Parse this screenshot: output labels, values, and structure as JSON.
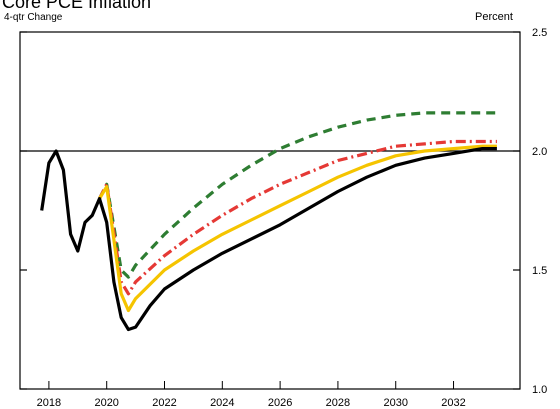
{
  "chart_data": {
    "type": "line",
    "title": "Core PCE Inflation",
    "subtitle": "4-qtr Change",
    "y_label": "Percent",
    "xlim": [
      2017,
      2034.3
    ],
    "xticks": [
      2018,
      2020,
      2022,
      2024,
      2026,
      2028,
      2030,
      2032
    ],
    "ylim": [
      1.0,
      2.5
    ],
    "yticks": [
      {
        "value": 1.0,
        "label": "1.0"
      },
      1.5,
      {
        "value": 2.0,
        "label": "2.0"
      },
      2.5
    ],
    "hline": 2,
    "series": [
      {
        "color": "#2e7d32",
        "dash": "9,6",
        "x": [
          2019.75,
          2020,
          2020.5,
          2020.75,
          2021,
          2022,
          2023,
          2024,
          2025,
          2026,
          2027,
          2028,
          2029,
          2030,
          2031,
          2032,
          2033,
          2033.5
        ],
        "values": [
          1.8,
          1.86,
          1.5,
          1.47,
          1.52,
          1.65,
          1.76,
          1.86,
          1.94,
          2.01,
          2.06,
          2.1,
          2.13,
          2.15,
          2.16,
          2.16,
          2.16,
          2.16
        ]
      },
      {
        "color": "#e53935",
        "dash": "10,4,2,4",
        "x": [
          2019.75,
          2020,
          2020.5,
          2020.75,
          2021,
          2022,
          2023,
          2024,
          2025,
          2026,
          2027,
          2028,
          2029,
          2030,
          2031,
          2032,
          2033,
          2033.5
        ],
        "values": [
          1.8,
          1.86,
          1.45,
          1.4,
          1.45,
          1.56,
          1.65,
          1.73,
          1.8,
          1.86,
          1.91,
          1.96,
          1.99,
          2.02,
          2.03,
          2.04,
          2.04,
          2.04
        ]
      },
      {
        "color": "#f5c400",
        "dash": "",
        "x": [
          2019.75,
          2020,
          2020.5,
          2020.75,
          2021,
          2022,
          2023,
          2024,
          2025,
          2026,
          2027,
          2028,
          2029,
          2030,
          2031,
          2032,
          2033,
          2033.5
        ],
        "values": [
          1.8,
          1.85,
          1.4,
          1.33,
          1.38,
          1.5,
          1.58,
          1.65,
          1.71,
          1.77,
          1.83,
          1.89,
          1.94,
          1.98,
          2.0,
          2.01,
          2.02,
          2.02
        ]
      },
      {
        "color": "#000000",
        "dash": "",
        "x": [
          2017.75,
          2018,
          2018.25,
          2018.5,
          2018.75,
          2019,
          2019.25,
          2019.5,
          2019.75,
          2020,
          2020.25,
          2020.5,
          2020.75,
          2021,
          2021.5,
          2022,
          2023,
          2024,
          2025,
          2026,
          2027,
          2028,
          2029,
          2030,
          2031,
          2032,
          2033,
          2033.5
        ],
        "values": [
          1.75,
          1.95,
          2.0,
          1.92,
          1.65,
          1.58,
          1.7,
          1.73,
          1.8,
          1.7,
          1.45,
          1.3,
          1.25,
          1.26,
          1.35,
          1.42,
          1.5,
          1.57,
          1.63,
          1.69,
          1.76,
          1.83,
          1.89,
          1.94,
          1.97,
          1.99,
          2.01,
          2.01
        ]
      }
    ]
  }
}
